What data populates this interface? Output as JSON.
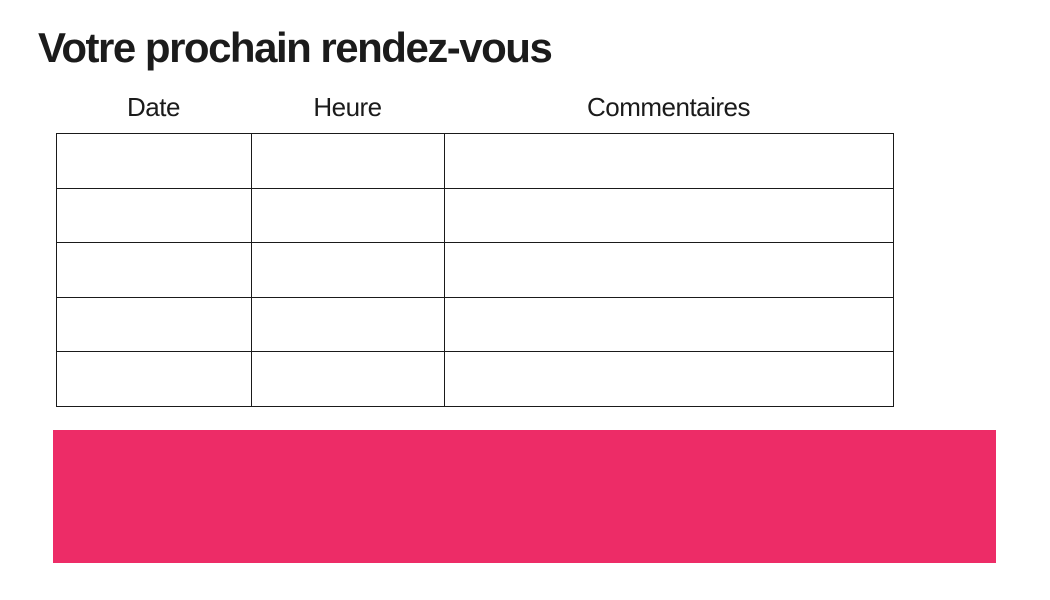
{
  "page": {
    "title": "Votre prochain rendez-vous"
  },
  "table": {
    "columns": [
      {
        "key": "date",
        "label": "Date"
      },
      {
        "key": "heure",
        "label": "Heure"
      },
      {
        "key": "commentaires",
        "label": "Commentaires"
      }
    ],
    "rows": [
      [
        "",
        "",
        ""
      ],
      [
        "",
        "",
        ""
      ],
      [
        "",
        "",
        ""
      ],
      [
        "",
        "",
        ""
      ],
      [
        "",
        "",
        ""
      ]
    ]
  },
  "colors": {
    "accent_pink": "#ED2C67",
    "text": "#1B1B1B",
    "table_border": "#1A1A1A",
    "background": "#FFFFFF"
  }
}
